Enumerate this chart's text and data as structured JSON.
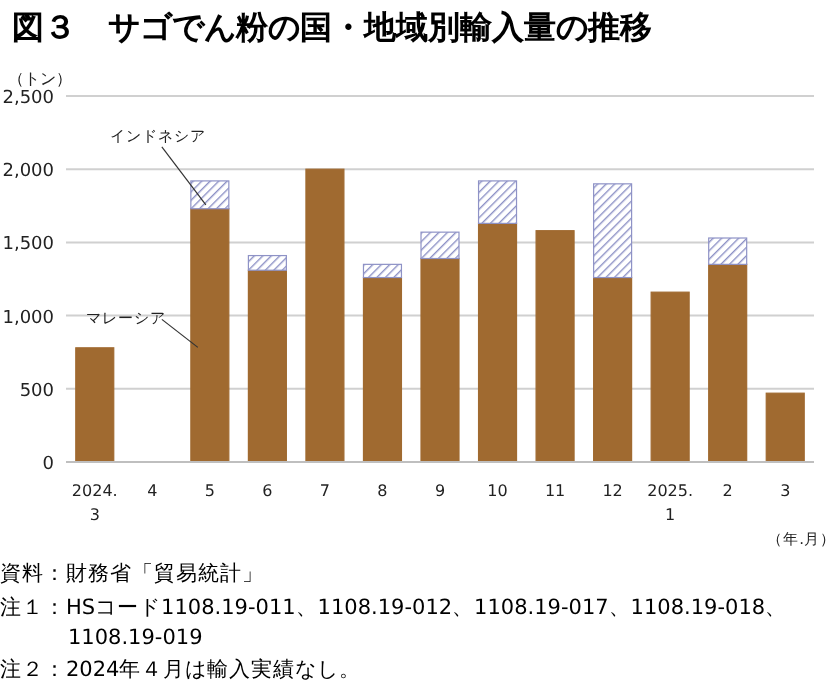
{
  "chart_data": {
    "type": "bar",
    "title": "図３　サゴでん粉の国・地域別輸入量の推移",
    "ylabel": "（トン）",
    "xlabel": "（年.月）",
    "categories": [
      "2024.\n3",
      "4",
      "5",
      "6",
      "7",
      "8",
      "9",
      "10",
      "11",
      "12",
      "2025.\n1",
      "2",
      "3"
    ],
    "stacked": true,
    "series": [
      {
        "name": "マレーシア",
        "color": "#a06a30",
        "values": [
          780,
          null,
          1730,
          1310,
          2000,
          1260,
          1390,
          1630,
          1580,
          1260,
          1160,
          1350,
          470
        ]
      },
      {
        "name": "インドネシア",
        "color": "#8e92c6",
        "values": [
          null,
          null,
          190,
          100,
          null,
          90,
          180,
          290,
          null,
          640,
          null,
          180,
          null
        ]
      }
    ],
    "ylim": [
      0,
      2500
    ],
    "yticks": [
      0,
      {
        "value": 500,
        "label": "500"
      },
      {
        "value": 1000,
        "label": "1,000"
      },
      {
        "value": 1500,
        "label": "1,500"
      },
      {
        "value": 2000,
        "label": "2,000"
      },
      {
        "value": 2500,
        "label": "2,500"
      }
    ],
    "grid": "y",
    "legend": false,
    "annotations": [
      "資料：財務省「貿易統計」",
      "注１：HSコード1108.19-011、1108.19-012、1108.19-017、1108.19-018、1108.19-019",
      "注２：2024年４月は輸入実績なし。"
    ]
  }
}
